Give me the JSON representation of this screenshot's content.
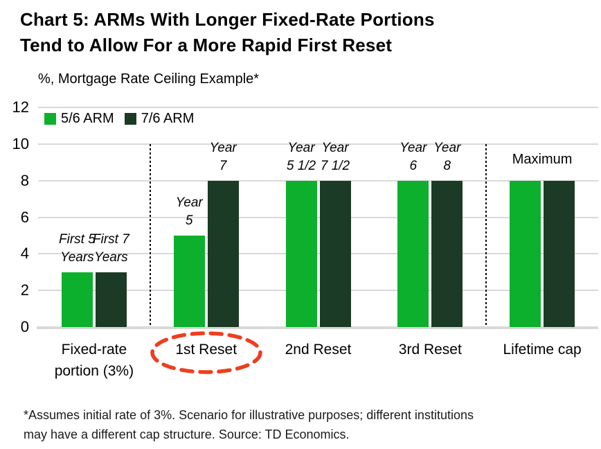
{
  "title": {
    "line1": "Chart 5: ARMs With Longer Fixed-Rate Portions",
    "line2": "Tend to Allow For a More Rapid First Reset"
  },
  "subtitle": "%, Mortgage Rate Ceiling Example*",
  "legend": {
    "items": [
      {
        "label": "5/6 ARM",
        "color": "#0db02c"
      },
      {
        "label": "7/6 ARM",
        "color": "#1b3b26"
      }
    ]
  },
  "footnote": {
    "line1": "*Assumes initial rate of 3%. Scenario for illustrative purposes; different institutions",
    "line2": "may have a different cap structure. Source: TD Economics."
  },
  "colors": {
    "bar_light_green": "#0db02c",
    "bar_dark_green": "#1b3b26",
    "gridline": "#d9d9d9",
    "axis_line": "#d9d9d9",
    "annotation_ellipse": "#ee3e1f",
    "text": "#000000"
  },
  "chart_data": {
    "type": "bar",
    "title": "Chart 5: ARMs With Longer Fixed-Rate Portions Tend to Allow For a More Rapid First Reset",
    "subtitle": "%, Mortgage Rate Ceiling Example*",
    "categories": [
      "Fixed-rate portion (3%)",
      "1st Reset",
      "2nd Reset",
      "3rd Reset",
      "Lifetime cap"
    ],
    "category_label_lines": [
      [
        "Fixed-rate",
        "portion (3%)"
      ],
      [
        "1st Reset"
      ],
      [
        "2nd Reset"
      ],
      [
        "3rd Reset"
      ],
      [
        "Lifetime cap"
      ]
    ],
    "series": [
      {
        "name": "5/6 ARM",
        "color": "#0db02c",
        "values": [
          3,
          5,
          8,
          8,
          8
        ],
        "bar_labels": [
          [
            "First 5",
            "Years"
          ],
          [
            "Year",
            "5"
          ],
          [
            "Year",
            "5 1/2"
          ],
          [
            "Year",
            "6"
          ],
          null
        ]
      },
      {
        "name": "7/6 ARM",
        "color": "#1b3b26",
        "values": [
          3,
          8,
          8,
          8,
          8
        ],
        "bar_labels": [
          [
            "First 7",
            "Years"
          ],
          [
            "Year",
            "7"
          ],
          [
            "Year",
            "7 1/2"
          ],
          [
            "Year",
            "8"
          ],
          null
        ]
      }
    ],
    "group_labels": [
      null,
      null,
      null,
      null,
      "Maximum"
    ],
    "ylabel": "%",
    "ylim": [
      0,
      12
    ],
    "yticks": [
      0,
      2,
      4,
      6,
      8,
      10,
      12
    ],
    "grid": "horizontal",
    "legend_position": "top-left-inside",
    "separators_after_category_index": [
      0,
      3
    ],
    "annotation": {
      "type": "dashed-ellipse",
      "category_index": 1,
      "label": "1st Reset",
      "color": "#ee3e1f"
    }
  }
}
